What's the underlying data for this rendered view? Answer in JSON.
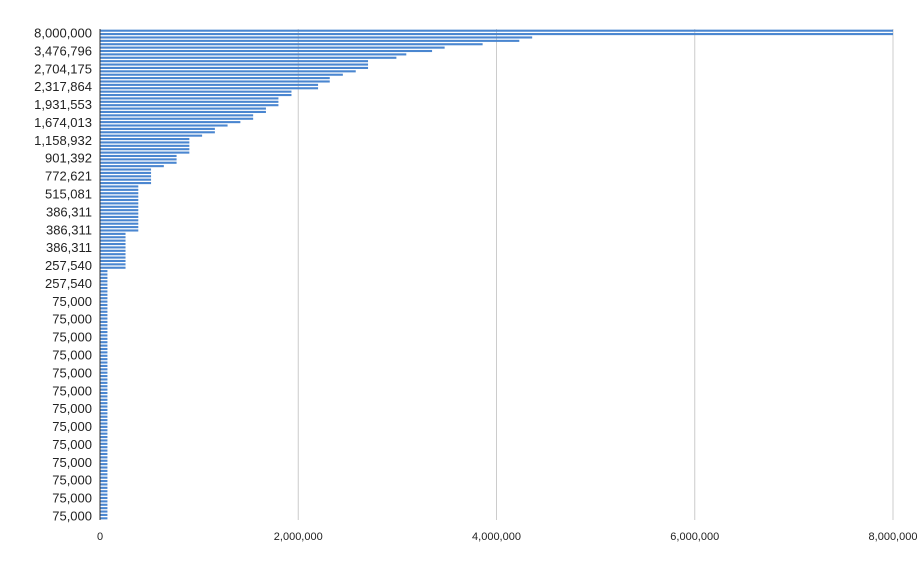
{
  "chart_data": {
    "type": "bar",
    "orientation": "horizontal",
    "title": "",
    "xlabel": "",
    "ylabel": "",
    "xlim": [
      0,
      8000000
    ],
    "x_ticks": [
      "0",
      "2,000,000",
      "4,000,000",
      "6,000,000",
      "8,000,000"
    ],
    "y_tick_labels": [
      "8,000,000",
      "3,476,796",
      "2,704,175",
      "2,317,864",
      "1,931,553",
      "1,674,013",
      "1,158,932",
      "901,392",
      "772,621",
      "515,081",
      "386,311",
      "386,311",
      "386,311",
      "257,540",
      "257,540",
      "75,000",
      "75,000",
      "75,000",
      "75,000",
      "75,000",
      "75,000",
      "75,000",
      "75,000",
      "75,000",
      "75,000",
      "75,000",
      "75,000",
      "75,000"
    ],
    "grid": "vertical",
    "legend": "none",
    "bar_color": "#4a86d0",
    "values": [
      8000000,
      8000000,
      4360000,
      4230000,
      3860000,
      3476796,
      3350000,
      3090000,
      2990000,
      2704175,
      2704175,
      2704175,
      2580000,
      2450000,
      2317864,
      2317864,
      2200000,
      2200000,
      1931553,
      1931553,
      1800000,
      1800000,
      1800000,
      1674013,
      1674013,
      1545000,
      1545000,
      1416000,
      1287000,
      1158932,
      1158932,
      1030000,
      901392,
      901392,
      901392,
      901392,
      901392,
      772621,
      772621,
      772621,
      644000,
      515081,
      515081,
      515081,
      515081,
      515081,
      386311,
      386311,
      386311,
      386311,
      386311,
      386311,
      386311,
      386311,
      386311,
      386311,
      386311,
      386311,
      386311,
      386311,
      257540,
      257540,
      257540,
      257540,
      257540,
      257540,
      257540,
      257540,
      257540,
      257540,
      257540,
      75000,
      75000,
      75000,
      75000,
      75000,
      75000,
      75000,
      75000,
      75000,
      75000,
      75000,
      75000,
      75000,
      75000,
      75000,
      75000,
      75000,
      75000,
      75000,
      75000,
      75000,
      75000,
      75000,
      75000,
      75000,
      75000,
      75000,
      75000,
      75000,
      75000,
      75000,
      75000,
      75000,
      75000,
      75000,
      75000,
      75000,
      75000,
      75000,
      75000,
      75000,
      75000,
      75000,
      75000,
      75000,
      75000,
      75000,
      75000,
      75000,
      75000,
      75000,
      75000,
      75000,
      75000,
      75000,
      75000,
      75000,
      75000,
      75000,
      75000,
      75000,
      75000,
      75000,
      75000,
      75000,
      75000,
      75000,
      75000,
      75000,
      75000,
      75000,
      75000,
      75000,
      75000
    ]
  }
}
